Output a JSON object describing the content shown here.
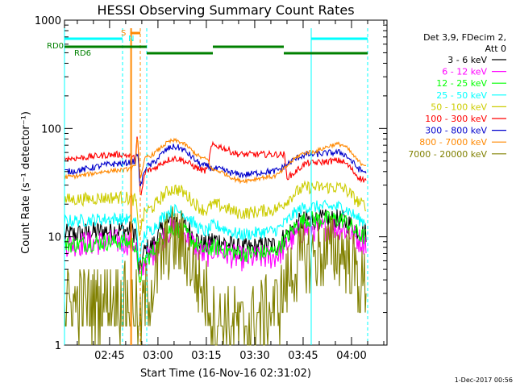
{
  "chart_data": {
    "type": "line",
    "title": "HESSI Observing Summary Count Rates",
    "xlabel": "Start Time (16-Nov-16 02:31:02)",
    "ylabel": "Count Rate (s⁻¹ detector⁻¹)",
    "yscale": "log",
    "ylim": [
      1,
      1000
    ],
    "xlim": [
      "02:31:02",
      "04:11:00"
    ],
    "x_tick_labels": [
      "02:45",
      "03:00",
      "03:15",
      "03:30",
      "03:45",
      "04:00"
    ],
    "y_tick_labels": [
      "1",
      "10",
      "100",
      "1000"
    ],
    "legend_header": [
      "Det 3,9, FDecim 2,",
      "Att 0"
    ],
    "legend_placement": "right",
    "series": [
      {
        "name": "3 - 6 keV",
        "color": "#000000",
        "base": 11.0,
        "noise": 0.1,
        "profile": [
          [
            0,
            0.95
          ],
          [
            0.18,
            1.05
          ],
          [
            0.22,
            1.0
          ],
          [
            0.23,
            0.45
          ],
          [
            0.255,
            0.7
          ],
          [
            0.34,
            1.28
          ],
          [
            0.44,
            0.75
          ],
          [
            0.46,
            0.85
          ],
          [
            0.55,
            0.7
          ],
          [
            0.64,
            0.75
          ],
          [
            0.76,
            1.3
          ],
          [
            0.85,
            1.3
          ],
          [
            0.93,
            1.0
          ]
        ]
      },
      {
        "name": "6 - 12 keV",
        "color": "#ff00ff",
        "base": 9.0,
        "noise": 0.12,
        "profile": [
          [
            0,
            0.95
          ],
          [
            0.18,
            1.0
          ],
          [
            0.22,
            0.95
          ],
          [
            0.23,
            0.45
          ],
          [
            0.255,
            0.7
          ],
          [
            0.34,
            1.3
          ],
          [
            0.44,
            0.75
          ],
          [
            0.46,
            0.85
          ],
          [
            0.55,
            0.7
          ],
          [
            0.64,
            0.72
          ],
          [
            0.76,
            1.3
          ],
          [
            0.85,
            1.35
          ],
          [
            0.93,
            1.0
          ]
        ]
      },
      {
        "name": "12 - 25 keV",
        "color": "#00ff00",
        "base": 10.0,
        "noise": 0.08,
        "profile": [
          [
            0,
            0.85
          ],
          [
            0.18,
            0.9
          ],
          [
            0.22,
            0.85
          ],
          [
            0.23,
            0.4
          ],
          [
            0.255,
            0.65
          ],
          [
            0.34,
            1.2
          ],
          [
            0.44,
            0.75
          ],
          [
            0.46,
            0.8
          ],
          [
            0.55,
            0.7
          ],
          [
            0.64,
            0.72
          ],
          [
            0.76,
            1.45
          ],
          [
            0.85,
            1.45
          ],
          [
            0.93,
            1.0
          ]
        ]
      },
      {
        "name": "25 - 50 keV",
        "color": "#00ffff",
        "base": 14.0,
        "noise": 0.06,
        "profile": [
          [
            0,
            1.0
          ],
          [
            0.18,
            1.05
          ],
          [
            0.22,
            1.0
          ],
          [
            0.23,
            0.45
          ],
          [
            0.255,
            0.8
          ],
          [
            0.34,
            1.25
          ],
          [
            0.44,
            0.8
          ],
          [
            0.46,
            0.9
          ],
          [
            0.55,
            0.75
          ],
          [
            0.64,
            0.8
          ],
          [
            0.76,
            1.35
          ],
          [
            0.85,
            1.35
          ],
          [
            0.93,
            1.0
          ]
        ]
      },
      {
        "name": "50 - 100 keV",
        "color": "#cccc00",
        "base": 22.0,
        "noise": 0.06,
        "profile": [
          [
            0,
            1.0
          ],
          [
            0.18,
            1.05
          ],
          [
            0.22,
            1.0
          ],
          [
            0.23,
            0.5
          ],
          [
            0.255,
            0.8
          ],
          [
            0.34,
            1.25
          ],
          [
            0.44,
            0.8
          ],
          [
            0.46,
            0.9
          ],
          [
            0.55,
            0.75
          ],
          [
            0.64,
            0.8
          ],
          [
            0.76,
            1.3
          ],
          [
            0.85,
            1.3
          ],
          [
            0.93,
            0.9
          ]
        ]
      },
      {
        "name": "100 - 300 keV",
        "color": "#ff0000",
        "base": 48.0,
        "noise": 0.03,
        "profile": [
          [
            0,
            1.1
          ],
          [
            0.18,
            1.2
          ],
          [
            0.22,
            1.1
          ],
          [
            0.225,
            1.7
          ],
          [
            0.235,
            0.5
          ],
          [
            0.255,
            0.85
          ],
          [
            0.34,
            1.1
          ],
          [
            0.44,
            0.85
          ],
          [
            0.46,
            1.45
          ],
          [
            0.55,
            1.2
          ],
          [
            0.68,
            1.2
          ],
          [
            0.69,
            0.75
          ],
          [
            0.76,
            1.0
          ],
          [
            0.85,
            1.05
          ],
          [
            0.93,
            0.7
          ]
        ]
      },
      {
        "name": "300 - 800 keV",
        "color": "#0000cc",
        "base": 50.0,
        "noise": 0.03,
        "profile": [
          [
            0,
            0.8
          ],
          [
            0.18,
            0.95
          ],
          [
            0.22,
            1.0
          ],
          [
            0.225,
            1.2
          ],
          [
            0.235,
            0.6
          ],
          [
            0.255,
            0.9
          ],
          [
            0.34,
            1.35
          ],
          [
            0.44,
            0.9
          ],
          [
            0.46,
            0.85
          ],
          [
            0.55,
            0.75
          ],
          [
            0.64,
            0.8
          ],
          [
            0.76,
            1.15
          ],
          [
            0.85,
            1.2
          ],
          [
            0.93,
            0.8
          ]
        ]
      },
      {
        "name": "800 - 7000 keV",
        "color": "#ff8800",
        "base": 55.0,
        "noise": 0.02,
        "profile": [
          [
            0,
            0.65
          ],
          [
            0.18,
            0.75
          ],
          [
            0.22,
            0.8
          ],
          [
            0.225,
            1.5
          ],
          [
            0.235,
            0.65
          ],
          [
            0.255,
            1.0
          ],
          [
            0.34,
            1.4
          ],
          [
            0.44,
            0.95
          ],
          [
            0.46,
            0.75
          ],
          [
            0.55,
            0.6
          ],
          [
            0.64,
            0.65
          ],
          [
            0.76,
            1.1
          ],
          [
            0.85,
            1.3
          ],
          [
            0.93,
            0.85
          ]
        ]
      },
      {
        "name": "7000 - 20000 keV",
        "color": "#808000",
        "base": 3.0,
        "noise": 0.35,
        "profile": [
          [
            0,
            0.8
          ],
          [
            0.18,
            0.9
          ],
          [
            0.22,
            0.8
          ],
          [
            0.23,
            0.4
          ],
          [
            0.255,
            1.0
          ],
          [
            0.34,
            3.0
          ],
          [
            0.44,
            1.0
          ],
          [
            0.46,
            0.6
          ],
          [
            0.55,
            0.5
          ],
          [
            0.64,
            0.7
          ],
          [
            0.76,
            2.2
          ],
          [
            0.85,
            2.5
          ],
          [
            0.93,
            1.2
          ]
        ]
      }
    ],
    "flags": [
      {
        "label": "RD0",
        "color": "#008000"
      },
      {
        "label": "RD6",
        "color": "#008000"
      },
      {
        "label": "S",
        "color": "#ff8800"
      },
      {
        "label": "N",
        "color": "#00ffff"
      }
    ],
    "footer_date": "1-Dec-2017 00:56"
  }
}
